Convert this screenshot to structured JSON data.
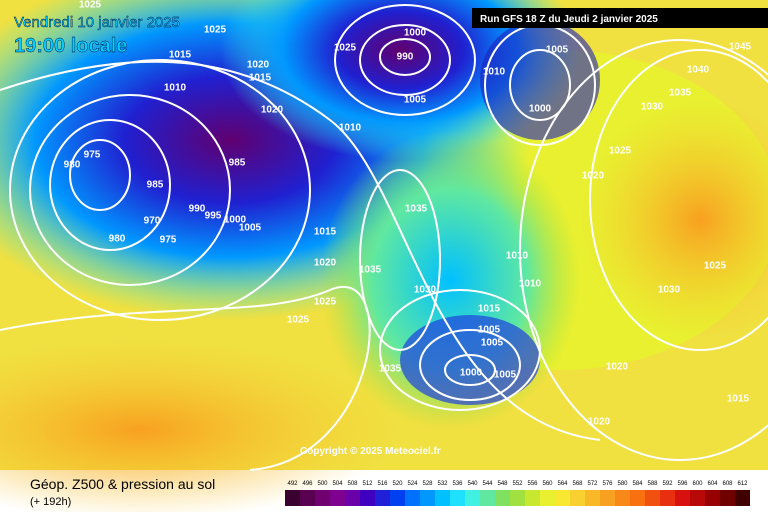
{
  "header": {
    "date": "Vendredi 10 janvier 2025",
    "time": "19:00 locale",
    "run": "Run GFS 18 Z du Jeudi 2 janvier 2025"
  },
  "copyright": "Copyright © 2025 Meteociel.fr",
  "footer": {
    "title": "Géop. Z500 & pression au sol",
    "lead": "(+ 192h)"
  },
  "scale": {
    "labels": [
      492,
      496,
      500,
      504,
      508,
      512,
      516,
      520,
      524,
      528,
      532,
      536,
      540,
      544,
      548,
      552,
      556,
      560,
      564,
      568,
      572,
      576,
      580,
      584,
      588,
      592,
      596,
      600,
      604,
      608,
      612
    ],
    "colors": [
      "#3a0030",
      "#5a0050",
      "#700070",
      "#800090",
      "#6a00a8",
      "#4000c0",
      "#2020d8",
      "#0040f0",
      "#0070ff",
      "#0098ff",
      "#00c0ff",
      "#20e0ff",
      "#40f0e0",
      "#60e8a0",
      "#80e060",
      "#a0e040",
      "#c8e830",
      "#e8f030",
      "#f8e830",
      "#f8d030",
      "#f8b828",
      "#f8a020",
      "#f88818",
      "#f87010",
      "#f05010",
      "#e83010",
      "#d81010",
      "#b80808",
      "#980000",
      "#700000",
      "#400000"
    ]
  },
  "isobars": [
    "1025",
    "1025",
    "1015",
    "1010",
    "1020",
    "1015",
    "1020",
    "1025",
    "1000",
    "990",
    "1005",
    "1010",
    "1005",
    "1010",
    "1000",
    "1045",
    "1040",
    "1035",
    "1030",
    "1025",
    "1020",
    "975",
    "980",
    "985",
    "985",
    "990",
    "995",
    "1000",
    "1005",
    "970",
    "975",
    "980",
    "1015",
    "1020",
    "1025",
    "1025",
    "1035",
    "1035",
    "1030",
    "1010",
    "1010",
    "1015",
    "1005",
    "1005",
    "1000",
    "1005",
    "1035",
    "1025",
    "1030",
    "1020",
    "1020",
    "1015"
  ]
}
